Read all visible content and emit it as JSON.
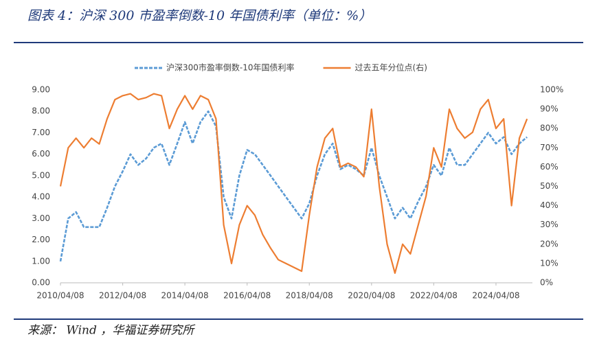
{
  "chart_data": {
    "type": "line",
    "title": "图表 4：沪深 300 市盈率倒数-10 年国债利率（单位：%）",
    "source": "来源： Wind ，华福证券研究所",
    "x": [
      "2010/04/08",
      "2010/07/08",
      "2010/10/08",
      "2011/01/08",
      "2011/04/08",
      "2011/07/08",
      "2011/10/08",
      "2012/01/08",
      "2012/04/08",
      "2012/07/08",
      "2012/10/08",
      "2013/01/08",
      "2013/04/08",
      "2013/07/08",
      "2013/10/08",
      "2014/01/08",
      "2014/04/08",
      "2014/07/08",
      "2014/10/08",
      "2015/01/08",
      "2015/04/08",
      "2015/07/08",
      "2015/10/08",
      "2016/01/08",
      "2016/04/08",
      "2016/07/08",
      "2016/10/08",
      "2017/01/08",
      "2017/04/08",
      "2017/07/08",
      "2017/10/08",
      "2018/01/08",
      "2018/04/08",
      "2018/07/08",
      "2018/10/08",
      "2019/01/08",
      "2019/04/08",
      "2019/07/08",
      "2019/10/08",
      "2020/01/08",
      "2020/04/08",
      "2020/07/08",
      "2020/10/08",
      "2021/01/08",
      "2021/04/08",
      "2021/07/08",
      "2021/10/08",
      "2022/01/08",
      "2022/04/08",
      "2022/07/08",
      "2022/10/08",
      "2023/01/08",
      "2023/04/08",
      "2023/07/08",
      "2023/10/08",
      "2024/01/08",
      "2024/04/08",
      "2024/07/08",
      "2024/10/08",
      "2025/01/08",
      "2025/04/08"
    ],
    "series": [
      {
        "name": "沪深300市盈率倒数-10年国债利率",
        "color": "#5b9bd5",
        "dashed": true,
        "values": [
          1.0,
          3.0,
          3.3,
          2.6,
          2.6,
          2.6,
          3.5,
          4.5,
          5.2,
          6.0,
          5.5,
          5.8,
          6.3,
          6.5,
          5.5,
          6.5,
          7.5,
          6.5,
          7.5,
          8.0,
          7.3,
          4.0,
          3.0,
          5.0,
          6.2,
          6.0,
          5.5,
          5.0,
          4.5,
          4.0,
          3.5,
          3.0,
          3.7,
          5.0,
          6.0,
          6.5,
          5.3,
          5.5,
          5.3,
          5.0,
          6.3,
          5.0,
          4.0,
          3.0,
          3.5,
          3.0,
          3.8,
          4.5,
          5.5,
          5.0,
          6.3,
          5.5,
          5.5,
          6.0,
          6.5,
          7.0,
          6.5,
          6.8,
          6.0,
          6.5,
          6.8
        ]
      },
      {
        "name": "过去五年分位点(右)",
        "color": "#ed7d31",
        "axis": "y2",
        "values": [
          50,
          70,
          75,
          70,
          75,
          72,
          85,
          95,
          97,
          98,
          95,
          96,
          98,
          97,
          80,
          90,
          97,
          90,
          97,
          95,
          85,
          30,
          10,
          30,
          40,
          35,
          25,
          18,
          12,
          10,
          8,
          6,
          35,
          60,
          75,
          80,
          60,
          62,
          60,
          55,
          90,
          50,
          20,
          5,
          20,
          15,
          30,
          45,
          70,
          60,
          90,
          80,
          75,
          78,
          90,
          95,
          80,
          85,
          40,
          75,
          85
        ]
      }
    ],
    "xlim": [
      "2010/04/08",
      "2025/06/10"
    ],
    "xticks": [
      "2010/04/08",
      "2012/04/08",
      "2014/04/08",
      "2016/04/08",
      "2018/04/08",
      "2020/04/08",
      "2022/04/08",
      "2024/04/08"
    ],
    "ylim": [
      0,
      9
    ],
    "yticks": [
      {
        "value": 0,
        "label": "0.00"
      },
      {
        "value": 1,
        "label": "1.00"
      },
      {
        "value": 2,
        "label": "2.00"
      },
      {
        "value": 3,
        "label": "3.00"
      },
      {
        "value": 4,
        "label": "4.00"
      },
      {
        "value": 5,
        "label": "5.00"
      },
      {
        "value": 6,
        "label": "6.00"
      },
      {
        "value": 7,
        "label": "7.00"
      },
      {
        "value": 8,
        "label": "8.00"
      },
      {
        "value": 9,
        "label": "9.00"
      }
    ],
    "y2lim": [
      0,
      100
    ],
    "y2ticks": [
      {
        "value": 0,
        "label": "0%"
      },
      {
        "value": 10,
        "label": "10%"
      },
      {
        "value": 20,
        "label": "20%"
      },
      {
        "value": 30,
        "label": "30%"
      },
      {
        "value": 40,
        "label": "40%"
      },
      {
        "value": 50,
        "label": "50%"
      },
      {
        "value": 60,
        "label": "60%"
      },
      {
        "value": 70,
        "label": "70%"
      },
      {
        "value": 80,
        "label": "80%"
      },
      {
        "value": 90,
        "label": "90%"
      },
      {
        "value": 100,
        "label": "100%"
      }
    ],
    "grid": false,
    "legend": "top"
  }
}
